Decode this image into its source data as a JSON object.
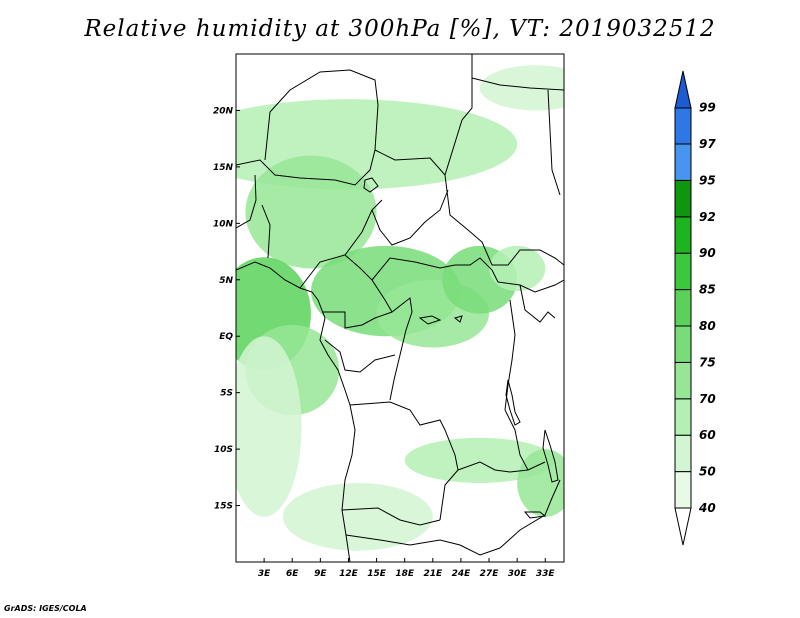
{
  "title": "Relative humidity at 300hPa [%], VT: 2019032512",
  "credit": "GrADS: IGES/COLA",
  "map": {
    "lat_range": [
      -20,
      25
    ],
    "lon_range": [
      0,
      35
    ],
    "lat_labels": [
      {
        "lat": 20,
        "text": "20N"
      },
      {
        "lat": 15,
        "text": "15N"
      },
      {
        "lat": 10,
        "text": "10N"
      },
      {
        "lat": 5,
        "text": "5N"
      },
      {
        "lat": 0,
        "text": "EQ"
      },
      {
        "lat": -5,
        "text": "5S"
      },
      {
        "lat": -10,
        "text": "10S"
      },
      {
        "lat": -15,
        "text": "15S"
      }
    ],
    "lon_labels": [
      {
        "lon": 3,
        "text": "3E"
      },
      {
        "lon": 6,
        "text": "6E"
      },
      {
        "lon": 9,
        "text": "9E"
      },
      {
        "lon": 12,
        "text": "12E"
      },
      {
        "lon": 15,
        "text": "15E"
      },
      {
        "lon": 18,
        "text": "18E"
      },
      {
        "lon": 21,
        "text": "21E"
      },
      {
        "lon": 24,
        "text": "24E"
      },
      {
        "lon": 27,
        "text": "27E"
      },
      {
        "lon": 30,
        "text": "30E"
      },
      {
        "lon": 33,
        "text": "33E"
      }
    ]
  },
  "colorbar": {
    "levels": [
      "40",
      "50",
      "60",
      "70",
      "75",
      "80",
      "85",
      "90",
      "92",
      "95",
      "97",
      "99"
    ],
    "colors": [
      "#ffffff",
      "#e6fae6",
      "#d2f5d2",
      "#b4f0b4",
      "#96e696",
      "#78dc78",
      "#5ad25a",
      "#3cc83c",
      "#1eb41e",
      "#0f960f",
      "#4696f0",
      "#2d78e6",
      "#1e5ad2"
    ]
  },
  "chart_data": {
    "type": "heatmap",
    "title": "Relative humidity at 300hPa [%], VT: 2019032512",
    "xlabel": "",
    "ylabel": "",
    "xlim": [
      0,
      35
    ],
    "ylim": [
      -20,
      25
    ],
    "field_units": "%",
    "contour_levels": [
      40,
      50,
      60,
      70,
      75,
      80,
      85,
      90,
      92,
      95,
      97,
      99
    ],
    "regions": [
      {
        "lon": 12,
        "lat": 17,
        "rx": 18,
        "ry": 4,
        "rh": 60
      },
      {
        "lon": 8,
        "lat": 11,
        "rx": 7,
        "ry": 5,
        "rh": 70
      },
      {
        "lon": 16,
        "lat": 4,
        "rx": 8,
        "ry": 4,
        "rh": 75
      },
      {
        "lon": 3,
        "lat": 2,
        "rx": 5,
        "ry": 5,
        "rh": 80
      },
      {
        "lon": 6,
        "lat": -3,
        "rx": 5,
        "ry": 4,
        "rh": 70
      },
      {
        "lon": 21,
        "lat": 2,
        "rx": 6,
        "ry": 3,
        "rh": 70
      },
      {
        "lon": 26,
        "lat": 5,
        "rx": 4,
        "ry": 3,
        "rh": 75
      },
      {
        "lon": 30,
        "lat": 6,
        "rx": 3,
        "ry": 2,
        "rh": 60
      },
      {
        "lon": 32,
        "lat": 22,
        "rx": 6,
        "ry": 2,
        "rh": 50
      },
      {
        "lon": 26,
        "lat": -11,
        "rx": 8,
        "ry": 2,
        "rh": 60
      },
      {
        "lon": 33,
        "lat": -13,
        "rx": 3,
        "ry": 3,
        "rh": 70
      },
      {
        "lon": 13,
        "lat": -16,
        "rx": 8,
        "ry": 3,
        "rh": 50
      },
      {
        "lon": 3,
        "lat": -8,
        "rx": 4,
        "ry": 8,
        "rh": 50
      }
    ]
  }
}
